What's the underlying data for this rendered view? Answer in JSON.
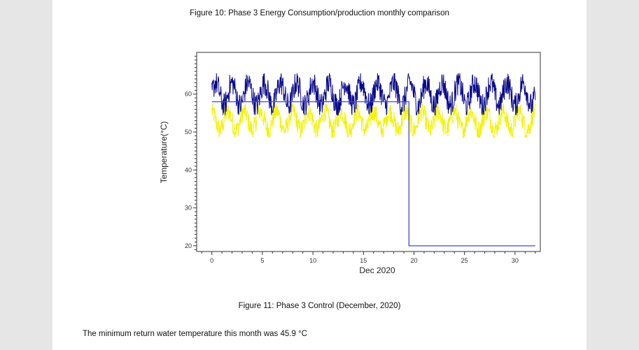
{
  "document": {
    "figure10_caption": "Figure 10: Phase 3 Energy Consumption/production monthly comparison",
    "figure11_caption": "Figure 11: Phase 3 Control (December, 2020)",
    "paragraph": "The minimum return water temperature this month was 45.9 °C"
  },
  "chart_data": {
    "type": "line",
    "title": "",
    "xlabel": "Dec 2020",
    "ylabel": "Temperature(°C)",
    "xlim": [
      -1.5,
      32.5
    ],
    "ylim": [
      18.5,
      71
    ],
    "xticks": [
      0,
      5,
      10,
      15,
      20,
      25,
      30
    ],
    "yticks": [
      20,
      30,
      40,
      50,
      60
    ],
    "grid": false,
    "colors": {
      "navy": "#0a0a8c",
      "yellow": "#f2f20a",
      "setpoint": "#4646dc"
    },
    "series": [
      {
        "style": "step",
        "color": "#4646dc",
        "x": [
          0,
          19.5,
          19.5,
          32
        ],
        "y": [
          58,
          58,
          20,
          20
        ]
      },
      {
        "style": "noisy-daily",
        "color": "#f2f20a",
        "x_start": 0,
        "x_end": 32,
        "low": 48.5,
        "high": 57.5
      },
      {
        "style": "noisy-daily",
        "color": "#0a0a8c",
        "x_start": 0,
        "x_end": 32,
        "low": 54.5,
        "high": 65.5
      }
    ]
  }
}
